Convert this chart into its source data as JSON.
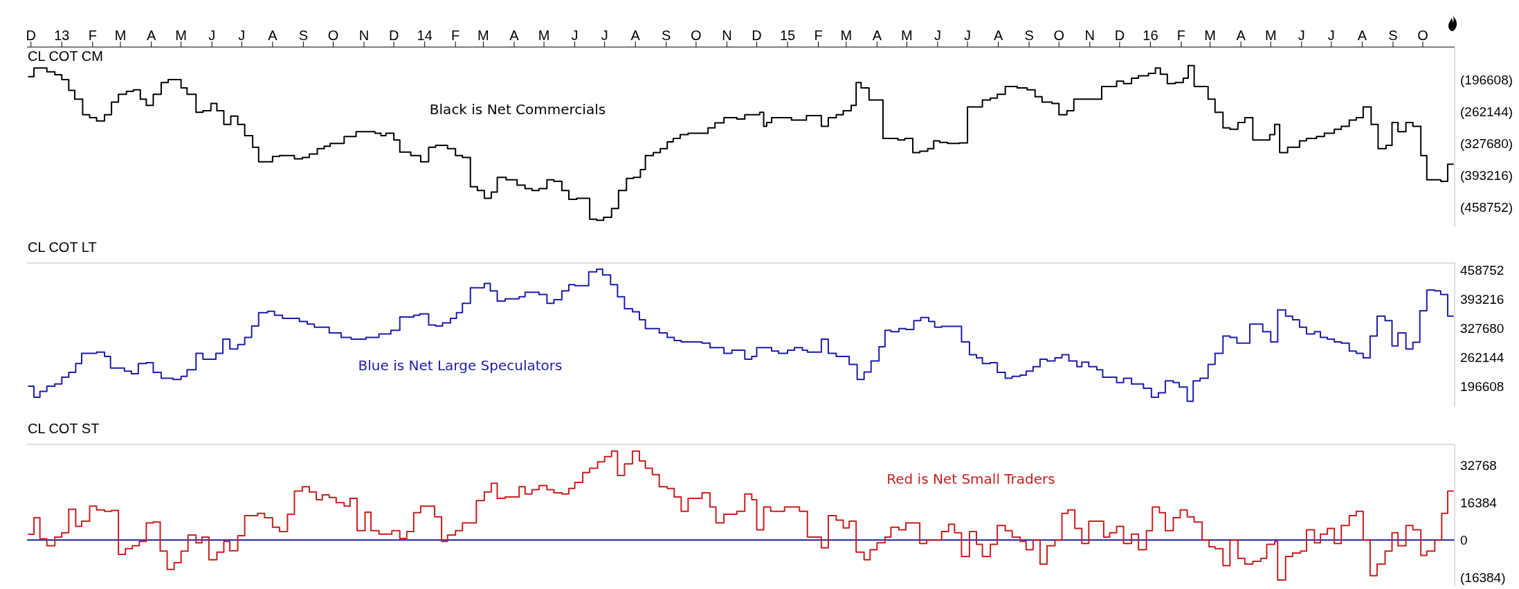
{
  "chart_data": [
    {
      "type": "step",
      "title": "CL COT CM",
      "annotations": [
        "Black is Net Commercials"
      ],
      "xlim": [
        "2012-11-27",
        "2016-11-02"
      ],
      "xticks": [
        {
          "value": "2012-12",
          "label": "D"
        },
        {
          "value": "2013-01",
          "label": "13"
        },
        {
          "value": "2013-02",
          "label": "F"
        },
        {
          "value": "2013-03",
          "label": "M"
        },
        {
          "value": "2013-04",
          "label": "A"
        },
        {
          "value": "2013-05",
          "label": "M"
        },
        {
          "value": "2013-06",
          "label": "J"
        },
        {
          "value": "2013-07",
          "label": "J"
        },
        {
          "value": "2013-08",
          "label": "A"
        },
        {
          "value": "2013-09",
          "label": "S"
        },
        {
          "value": "2013-10",
          "label": "O"
        },
        {
          "value": "2013-11",
          "label": "N"
        },
        {
          "value": "2013-12",
          "label": "D"
        },
        {
          "value": "2014-01",
          "label": "14"
        },
        {
          "value": "2014-02",
          "label": "F"
        },
        {
          "value": "2014-03",
          "label": "M"
        },
        {
          "value": "2014-04",
          "label": "A"
        },
        {
          "value": "2014-05",
          "label": "M"
        },
        {
          "value": "2014-06",
          "label": "J"
        },
        {
          "value": "2014-07",
          "label": "J"
        },
        {
          "value": "2014-08",
          "label": "A"
        },
        {
          "value": "2014-09",
          "label": "S"
        },
        {
          "value": "2014-10",
          "label": "O"
        },
        {
          "value": "2014-11",
          "label": "N"
        },
        {
          "value": "2014-12",
          "label": "D"
        },
        {
          "value": "2015-01",
          "label": "15"
        },
        {
          "value": "2015-02",
          "label": "F"
        },
        {
          "value": "2015-03",
          "label": "M"
        },
        {
          "value": "2015-04",
          "label": "A"
        },
        {
          "value": "2015-05",
          "label": "M"
        },
        {
          "value": "2015-06",
          "label": "J"
        },
        {
          "value": "2015-07",
          "label": "J"
        },
        {
          "value": "2015-08",
          "label": "A"
        },
        {
          "value": "2015-09",
          "label": "S"
        },
        {
          "value": "2015-10",
          "label": "O"
        },
        {
          "value": "2015-11",
          "label": "N"
        },
        {
          "value": "2015-12",
          "label": "D"
        },
        {
          "value": "2016-01",
          "label": "16"
        },
        {
          "value": "2016-02",
          "label": "F"
        },
        {
          "value": "2016-03",
          "label": "M"
        },
        {
          "value": "2016-04",
          "label": "A"
        },
        {
          "value": "2016-05",
          "label": "M"
        },
        {
          "value": "2016-06",
          "label": "J"
        },
        {
          "value": "2016-07",
          "label": "J"
        },
        {
          "value": "2016-08",
          "label": "A"
        },
        {
          "value": "2016-09",
          "label": "S"
        },
        {
          "value": "2016-10",
          "label": "O"
        }
      ],
      "ylim": [
        -500000,
        -130000
      ],
      "yticks": [
        {
          "value": -196608,
          "label": "(196608)"
        },
        {
          "value": -262144,
          "label": "(262144)"
        },
        {
          "value": -327680,
          "label": "(327680)"
        },
        {
          "value": -393216,
          "label": "(393216)"
        },
        {
          "value": -458752,
          "label": "(458752)"
        }
      ],
      "x": [
        "2012-11-28",
        "2012-12-04",
        "2012-12-17",
        "2012-12-25",
        "2013-01-01",
        "2013-01-08",
        "2013-01-14",
        "2013-01-22",
        "2013-01-29",
        "2013-02-05",
        "2013-02-13",
        "2013-02-20",
        "2013-02-27",
        "2013-03-07",
        "2013-03-14",
        "2013-03-21",
        "2013-03-27",
        "2013-04-03",
        "2013-04-11",
        "2013-04-18",
        "2013-05-01",
        "2013-05-07",
        "2013-05-16",
        "2013-05-23",
        "2013-05-31",
        "2013-06-06",
        "2013-06-13",
        "2013-06-20",
        "2013-06-27",
        "2013-07-04",
        "2013-07-12",
        "2013-07-18",
        "2013-08-01",
        "2013-08-08",
        "2013-08-23",
        "2013-08-31",
        "2013-09-07",
        "2013-09-15",
        "2013-09-22",
        "2013-09-28",
        "2013-10-12",
        "2013-10-24",
        "2013-11-12",
        "2013-11-18",
        "2013-11-23",
        "2013-12-01",
        "2013-12-07",
        "2013-12-18",
        "2013-12-28",
        "2014-01-05",
        "2014-01-12",
        "2014-01-24",
        "2014-02-01",
        "2014-02-08",
        "2014-02-16",
        "2014-02-23",
        "2014-03-02",
        "2014-03-09",
        "2014-03-15",
        "2014-03-24",
        "2014-04-04",
        "2014-04-12",
        "2014-04-19",
        "2014-04-26",
        "2014-05-04",
        "2014-05-11",
        "2014-05-19",
        "2014-05-26",
        "2014-06-03",
        "2014-06-16",
        "2014-06-23",
        "2014-06-30",
        "2014-07-08",
        "2014-07-15",
        "2014-07-23",
        "2014-07-30",
        "2014-08-06",
        "2014-08-11",
        "2014-08-19",
        "2014-08-26",
        "2014-09-02",
        "2014-09-08",
        "2014-09-15",
        "2014-09-23",
        "2014-10-13",
        "2014-10-20",
        "2014-10-29",
        "2014-11-11",
        "2014-11-19",
        "2014-12-04",
        "2014-12-08",
        "2014-12-11",
        "2014-12-16",
        "2015-01-05",
        "2015-01-20",
        "2015-02-04",
        "2015-02-11",
        "2015-02-19",
        "2015-02-26",
        "2015-03-06",
        "2015-03-11",
        "2015-03-16",
        "2015-03-24",
        "2015-04-07",
        "2015-04-22",
        "2015-04-29",
        "2015-05-07",
        "2015-05-14",
        "2015-05-22",
        "2015-05-28",
        "2015-06-03",
        "2015-06-11",
        "2015-06-23",
        "2015-07-01",
        "2015-07-16",
        "2015-07-24",
        "2015-07-31",
        "2015-08-08",
        "2015-08-20",
        "2015-08-30",
        "2015-09-07",
        "2015-09-14",
        "2015-09-24",
        "2015-10-01",
        "2015-10-09",
        "2015-10-16",
        "2015-11-13",
        "2015-11-28",
        "2015-12-05",
        "2015-12-13",
        "2015-12-20",
        "2015-12-30",
        "2016-01-06",
        "2016-01-11",
        "2016-01-18",
        "2016-01-26",
        "2016-02-03",
        "2016-02-08",
        "2016-02-14",
        "2016-02-28",
        "2016-03-06",
        "2016-03-14",
        "2016-03-21",
        "2016-03-29",
        "2016-04-05",
        "2016-04-13",
        "2016-04-30",
        "2016-05-05",
        "2016-05-10",
        "2016-05-18",
        "2016-05-30",
        "2016-06-06",
        "2016-06-16",
        "2016-06-24",
        "2016-07-04",
        "2016-07-11",
        "2016-07-19",
        "2016-07-26",
        "2016-08-02",
        "2016-08-10",
        "2016-08-17",
        "2016-08-25",
        "2016-08-31",
        "2016-09-06",
        "2016-09-14",
        "2016-09-21",
        "2016-09-29",
        "2016-10-05",
        "2016-10-19",
        "2016-10-26",
        "2016-11-01"
      ],
      "series": [
        {
          "color": "#000000",
          "values": [
            -191000,
            -173000,
            -181000,
            -187000,
            -197000,
            -219000,
            -237000,
            -269000,
            -275000,
            -282000,
            -269000,
            -243000,
            -227000,
            -221000,
            -218000,
            -237000,
            -250000,
            -227000,
            -203000,
            -197000,
            -214000,
            -227000,
            -264000,
            -261000,
            -246000,
            -261000,
            -289000,
            -272000,
            -289000,
            -312000,
            -336000,
            -366000,
            -355000,
            -353000,
            -360000,
            -357000,
            -350000,
            -339000,
            -334000,
            -328000,
            -314000,
            -304000,
            -307000,
            -312000,
            -307000,
            -321000,
            -346000,
            -353000,
            -366000,
            -336000,
            -332000,
            -339000,
            -353000,
            -357000,
            -417000,
            -425000,
            -441000,
            -428000,
            -398000,
            -403000,
            -414000,
            -421000,
            -425000,
            -421000,
            -403000,
            -406000,
            -425000,
            -443000,
            -441000,
            -484000,
            -486000,
            -480000,
            -462000,
            -425000,
            -400000,
            -398000,
            -382000,
            -353000,
            -347000,
            -339000,
            -325000,
            -318000,
            -310000,
            -307000,
            -296000,
            -286000,
            -275000,
            -278000,
            -269000,
            -264000,
            -293000,
            -285000,
            -275000,
            -280000,
            -271000,
            -293000,
            -275000,
            -269000,
            -261000,
            -250000,
            -203000,
            -214000,
            -239000,
            -318000,
            -321000,
            -318000,
            -347000,
            -344000,
            -339000,
            -323000,
            -326000,
            -328000,
            -327000,
            -253000,
            -239000,
            -235000,
            -227000,
            -211000,
            -214000,
            -218000,
            -232000,
            -243000,
            -246000,
            -269000,
            -261000,
            -237000,
            -211000,
            -200000,
            -205000,
            -194000,
            -189000,
            -184000,
            -173000,
            -186000,
            -205000,
            -203000,
            -194000,
            -168000,
            -211000,
            -237000,
            -264000,
            -296000,
            -299000,
            -285000,
            -275000,
            -321000,
            -310000,
            -289000,
            -347000,
            -336000,
            -323000,
            -318000,
            -314000,
            -307000,
            -299000,
            -293000,
            -280000,
            -275000,
            -253000,
            -289000,
            -339000,
            -332000,
            -285000,
            -304000,
            -285000,
            -293000,
            -353000,
            -403000,
            -406000,
            -371000,
            -371000
          ]
        }
      ]
    },
    {
      "type": "step",
      "title": "CL COT LT",
      "annotations": [
        "Blue is Net Large Speculators"
      ],
      "tick_labels": "y",
      "xlim": [
        "2012-11-27",
        "2016-11-02"
      ],
      "ylim": [
        150000,
        475000
      ],
      "yticks": [
        458752,
        393216,
        327680,
        262144,
        196608
      ],
      "x": [
        "2012-11-28",
        "2012-12-04",
        "2012-12-10",
        "2012-12-17",
        "2012-12-25",
        "2013-01-01",
        "2013-01-08",
        "2013-01-15",
        "2013-01-21",
        "2013-02-05",
        "2013-02-13",
        "2013-02-19",
        "2013-03-05",
        "2013-03-12",
        "2013-03-19",
        "2013-03-27",
        "2013-04-03",
        "2013-04-11",
        "2013-04-23",
        "2013-05-01",
        "2013-05-07",
        "2013-05-16",
        "2013-05-23",
        "2013-06-05",
        "2013-06-12",
        "2013-06-19",
        "2013-06-27",
        "2013-07-04",
        "2013-07-11",
        "2013-07-18",
        "2013-07-27",
        "2013-08-03",
        "2013-08-11",
        "2013-08-28",
        "2013-09-05",
        "2013-09-12",
        "2013-09-27",
        "2013-10-09",
        "2013-10-19",
        "2013-11-03",
        "2013-11-16",
        "2013-11-28",
        "2013-12-07",
        "2013-12-21",
        "2013-12-27",
        "2014-01-05",
        "2014-01-12",
        "2014-01-19",
        "2014-01-27",
        "2014-02-02",
        "2014-02-08",
        "2014-02-16",
        "2014-03-02",
        "2014-03-08",
        "2014-03-15",
        "2014-03-23",
        "2014-04-06",
        "2014-04-12",
        "2014-04-26",
        "2014-05-04",
        "2014-05-11",
        "2014-05-19",
        "2014-05-26",
        "2014-06-01",
        "2014-06-15",
        "2014-06-23",
        "2014-06-29",
        "2014-07-07",
        "2014-07-14",
        "2014-07-21",
        "2014-07-29",
        "2014-08-05",
        "2014-08-11",
        "2014-08-25",
        "2014-09-02",
        "2014-09-09",
        "2014-09-16",
        "2014-10-07",
        "2014-10-15",
        "2014-10-29",
        "2014-11-06",
        "2014-11-19",
        "2014-11-26",
        "2014-12-01",
        "2014-12-16",
        "2014-12-23",
        "2015-01-01",
        "2015-01-08",
        "2015-01-16",
        "2015-01-21",
        "2015-02-04",
        "2015-02-11",
        "2015-02-19",
        "2015-03-04",
        "2015-03-12",
        "2015-03-19",
        "2015-03-26",
        "2015-04-03",
        "2015-04-09",
        "2015-04-15",
        "2015-04-23",
        "2015-04-30",
        "2015-05-08",
        "2015-05-15",
        "2015-05-23",
        "2015-05-29",
        "2015-06-05",
        "2015-06-25",
        "2015-07-03",
        "2015-07-10",
        "2015-07-16",
        "2015-07-24",
        "2015-07-31",
        "2015-08-08",
        "2015-08-15",
        "2015-08-23",
        "2015-08-29",
        "2015-09-05",
        "2015-09-12",
        "2015-09-19",
        "2015-09-27",
        "2015-10-04",
        "2015-10-11",
        "2015-10-19",
        "2015-10-24",
        "2015-10-31",
        "2015-11-08",
        "2015-11-14",
        "2015-11-28",
        "2015-12-05",
        "2015-12-13",
        "2015-12-25",
        "2016-01-02",
        "2016-01-09",
        "2016-01-16",
        "2016-01-24",
        "2016-01-30",
        "2016-02-07",
        "2016-02-13",
        "2016-02-20",
        "2016-02-28",
        "2016-03-06",
        "2016-03-14",
        "2016-03-21",
        "2016-03-28",
        "2016-04-10",
        "2016-04-23",
        "2016-05-01",
        "2016-05-08",
        "2016-05-16",
        "2016-05-23",
        "2016-05-30",
        "2016-06-06",
        "2016-06-14",
        "2016-06-20",
        "2016-06-27",
        "2016-07-04",
        "2016-07-11",
        "2016-07-19",
        "2016-07-26",
        "2016-08-02",
        "2016-08-09",
        "2016-08-16",
        "2016-08-24",
        "2016-08-31",
        "2016-09-06",
        "2016-09-14",
        "2016-09-21",
        "2016-09-28",
        "2016-10-05",
        "2016-10-13",
        "2016-10-19",
        "2016-10-26",
        "2016-11-01"
      ],
      "series": [
        {
          "color": "#1c1ca8",
          "values": [
            197000,
            172000,
            185000,
            197000,
            202000,
            217000,
            228000,
            248000,
            271000,
            274000,
            264000,
            238000,
            231000,
            225000,
            248000,
            250000,
            228000,
            215000,
            212000,
            219000,
            234000,
            271000,
            258000,
            271000,
            303000,
            281000,
            291000,
            307000,
            333000,
            363000,
            366000,
            357000,
            350000,
            343000,
            337000,
            330000,
            317000,
            307000,
            303000,
            307000,
            315000,
            323000,
            353000,
            357000,
            360000,
            335000,
            333000,
            340000,
            350000,
            363000,
            384000,
            419000,
            429000,
            412000,
            389000,
            394000,
            399000,
            409000,
            404000,
            384000,
            392000,
            412000,
            426000,
            424000,
            455000,
            461000,
            448000,
            426000,
            399000,
            372000,
            365000,
            347000,
            327000,
            317000,
            307000,
            300000,
            297000,
            294000,
            284000,
            271000,
            278000,
            258000,
            264000,
            284000,
            276000,
            271000,
            278000,
            284000,
            278000,
            274000,
            303000,
            271000,
            264000,
            246000,
            212000,
            229000,
            254000,
            286000,
            323000,
            320000,
            327000,
            325000,
            345000,
            352000,
            343000,
            330000,
            332000,
            297000,
            268000,
            261000,
            248000,
            250000,
            228000,
            215000,
            219000,
            222000,
            231000,
            241000,
            258000,
            254000,
            261000,
            268000,
            254000,
            241000,
            251000,
            241000,
            234000,
            217000,
            205000,
            215000,
            202000,
            192000,
            172000,
            182000,
            209000,
            205000,
            195000,
            163000,
            209000,
            215000,
            246000,
            271000,
            310000,
            307000,
            294000,
            337000,
            320000,
            297000,
            369000,
            355000,
            347000,
            330000,
            315000,
            320000,
            307000,
            303000,
            297000,
            294000,
            276000,
            271000,
            261000,
            310000,
            355000,
            345000,
            288000,
            317000,
            281000,
            296000,
            367000,
            414000,
            412000,
            404000,
            355000,
            355000
          ]
        }
      ]
    },
    {
      "type": "step",
      "title": "CL COT ST",
      "annotations": [
        "Red is Net Small Traders"
      ],
      "tick_labels": "y",
      "xlim": [
        "2012-11-27",
        "2016-11-02"
      ],
      "ylim": [
        -20000,
        42000
      ],
      "yticks": [
        32768,
        16384,
        0,
        {
          "value": -16384,
          "label": "(16384)"
        }
      ],
      "ref_lines": [
        {
          "axis": "y",
          "value": 0,
          "color": "#1c1ca8"
        }
      ],
      "x": [
        "2012-11-28",
        "2012-12-04",
        "2012-12-10",
        "2012-12-17",
        "2012-12-25",
        "2013-01-01",
        "2013-01-08",
        "2013-01-15",
        "2013-01-21",
        "2013-01-29",
        "2013-02-05",
        "2013-02-13",
        "2013-02-20",
        "2013-02-27",
        "2013-03-06",
        "2013-03-13",
        "2013-03-20",
        "2013-03-27",
        "2013-04-03",
        "2013-04-10",
        "2013-04-17",
        "2013-04-24",
        "2013-05-01",
        "2013-05-08",
        "2013-05-16",
        "2013-05-22",
        "2013-05-29",
        "2013-06-06",
        "2013-06-13",
        "2013-06-19",
        "2013-06-27",
        "2013-07-04",
        "2013-07-17",
        "2013-07-24",
        "2013-08-01",
        "2013-08-08",
        "2013-08-16",
        "2013-08-23",
        "2013-08-31",
        "2013-09-07",
        "2013-09-14",
        "2013-09-20",
        "2013-09-27",
        "2013-10-04",
        "2013-10-12",
        "2013-10-18",
        "2013-10-25",
        "2013-11-02",
        "2013-11-08",
        "2013-11-16",
        "2013-11-29",
        "2013-12-07",
        "2013-12-14",
        "2013-12-21",
        "2013-12-28",
        "2014-01-11",
        "2014-01-18",
        "2014-01-24",
        "2014-02-01",
        "2014-02-08",
        "2014-02-22",
        "2014-03-02",
        "2014-03-09",
        "2014-03-15",
        "2014-03-23",
        "2014-04-06",
        "2014-04-12",
        "2014-04-19",
        "2014-04-26",
        "2014-05-04",
        "2014-05-11",
        "2014-05-19",
        "2014-05-26",
        "2014-06-01",
        "2014-06-09",
        "2014-06-16",
        "2014-06-24",
        "2014-07-01",
        "2014-07-08",
        "2014-07-14",
        "2014-07-21",
        "2014-07-29",
        "2014-08-05",
        "2014-08-11",
        "2014-08-18",
        "2014-08-25",
        "2014-09-02",
        "2014-09-09",
        "2014-09-16",
        "2014-09-23",
        "2014-10-07",
        "2014-10-15",
        "2014-10-21",
        "2014-10-29",
        "2014-11-11",
        "2014-11-19",
        "2014-11-26",
        "2014-12-01",
        "2014-12-08",
        "2014-12-15",
        "2014-12-29",
        "2015-01-13",
        "2015-01-21",
        "2015-02-04",
        "2015-02-11",
        "2015-02-19",
        "2015-02-26",
        "2015-03-04",
        "2015-03-11",
        "2015-03-19",
        "2015-03-25",
        "2015-04-01",
        "2015-04-09",
        "2015-04-15",
        "2015-04-23",
        "2015-04-30",
        "2015-05-14",
        "2015-05-21",
        "2015-06-05",
        "2015-06-12",
        "2015-06-18",
        "2015-06-25",
        "2015-07-03",
        "2015-07-10",
        "2015-07-16",
        "2015-07-24",
        "2015-07-31",
        "2015-08-08",
        "2015-08-15",
        "2015-08-23",
        "2015-08-29",
        "2015-09-05",
        "2015-09-12",
        "2015-09-19",
        "2015-09-27",
        "2015-10-04",
        "2015-10-10",
        "2015-10-17",
        "2015-10-24",
        "2015-10-31",
        "2015-11-15",
        "2015-11-21",
        "2015-11-28",
        "2015-12-05",
        "2015-12-13",
        "2015-12-20",
        "2015-12-28",
        "2016-01-03",
        "2016-01-10",
        "2016-01-16",
        "2016-01-24",
        "2016-01-31",
        "2016-02-07",
        "2016-02-14",
        "2016-02-22",
        "2016-02-29",
        "2016-03-06",
        "2016-03-14",
        "2016-03-21",
        "2016-03-29",
        "2016-04-05",
        "2016-04-13",
        "2016-04-21",
        "2016-04-27",
        "2016-05-05",
        "2016-05-08",
        "2016-05-16",
        "2016-05-23",
        "2016-05-31",
        "2016-06-06",
        "2016-06-14",
        "2016-06-20",
        "2016-06-27",
        "2016-07-04",
        "2016-07-11",
        "2016-07-19",
        "2016-07-26",
        "2016-08-02",
        "2016-08-09",
        "2016-08-16",
        "2016-08-24",
        "2016-08-31",
        "2016-09-06",
        "2016-09-14",
        "2016-09-21",
        "2016-09-29",
        "2016-10-05",
        "2016-10-13",
        "2016-10-20",
        "2016-10-26",
        "2016-11-01"
      ],
      "series": [
        {
          "color": "#c81e1e",
          "values": [
            2500,
            9800,
            500,
            -2500,
            1300,
            3200,
            13500,
            6000,
            8300,
            14900,
            13200,
            12600,
            13000,
            -6300,
            -3800,
            -2500,
            -600,
            7500,
            7900,
            -4900,
            -12900,
            -10000,
            -4900,
            2200,
            -1200,
            1300,
            -8700,
            -5300,
            -600,
            -4700,
            1900,
            10700,
            11700,
            9800,
            5600,
            3700,
            11300,
            21500,
            23400,
            21100,
            17700,
            19800,
            18700,
            16400,
            14900,
            18300,
            4100,
            12200,
            4100,
            2600,
            4100,
            700,
            3700,
            12000,
            14900,
            10200,
            -600,
            2200,
            4100,
            7500,
            17300,
            21100,
            24900,
            18300,
            18900,
            23400,
            20200,
            22100,
            23900,
            22100,
            20700,
            20200,
            22600,
            25300,
            29600,
            31500,
            34300,
            36600,
            39000,
            28300,
            33400,
            39000,
            34700,
            31500,
            28700,
            23400,
            22600,
            18900,
            12600,
            18300,
            20700,
            14500,
            7500,
            11300,
            12600,
            20200,
            17700,
            4500,
            14500,
            12600,
            14500,
            12600,
            1300,
            -3400,
            10700,
            8700,
            5300,
            8300,
            -5300,
            -8700,
            -4300,
            -1200,
            1300,
            5600,
            4500,
            7500,
            -1500,
            0,
            3700,
            6900,
            3200,
            -7200,
            3700,
            -1900,
            -7200,
            -1900,
            6400,
            4100,
            1300,
            -600,
            -4300,
            0,
            -10600,
            -2500,
            0,
            11700,
            13200,
            5100,
            -1500,
            8300,
            1300,
            3200,
            6000,
            -1500,
            2600,
            -4300,
            4100,
            14500,
            12000,
            4100,
            9800,
            13200,
            10200,
            7900,
            0,
            -3000,
            -3800,
            -11300,
            0,
            -8100,
            -10600,
            -9400,
            -8100,
            -1900,
            -600,
            -17600,
            -7200,
            -5700,
            -4900,
            4500,
            -1200,
            2600,
            5100,
            -1500,
            6400,
            10700,
            12600,
            0,
            -15700,
            -10600,
            -4900,
            3200,
            -2500,
            6400,
            4500,
            -6800,
            -4900,
            0,
            11700,
            21500,
            21500
          ]
        }
      ]
    }
  ]
}
